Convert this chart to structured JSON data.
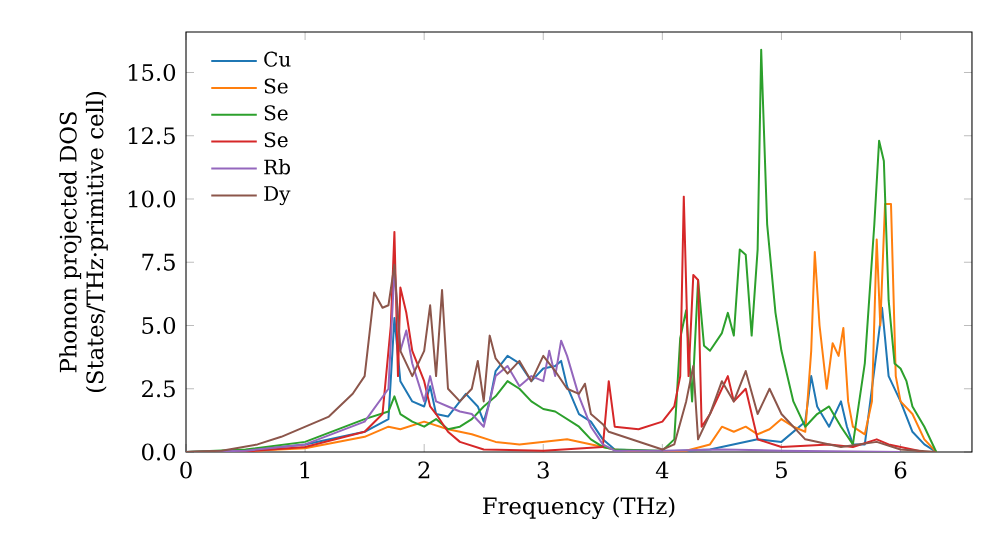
{
  "chart_data": {
    "type": "line",
    "xlabel": "Frequency (THz)",
    "ylabel": "Phonon projected DOS\n(States/THz·primitive cell)",
    "xlim": [
      0,
      6.6
    ],
    "ylim": [
      0,
      16.6
    ],
    "xticks": [
      0,
      1,
      2,
      3,
      4,
      5,
      6
    ],
    "yticks": [
      {
        "value": 0,
        "label": "0.0"
      },
      {
        "value": 2.5,
        "label": "2.5"
      },
      {
        "value": 5,
        "label": "5.0"
      },
      {
        "value": 7.5,
        "label": "7.5"
      },
      {
        "value": 10,
        "label": "10.0"
      },
      {
        "value": 12.5,
        "label": "12.5"
      },
      {
        "value": 15,
        "label": "15.0"
      }
    ],
    "legend": "top left",
    "grid": false,
    "series": [
      {
        "name": "Cu",
        "color": "#1f77b4",
        "x": [
          0,
          0.5,
          1.0,
          1.5,
          1.7,
          1.75,
          1.8,
          1.9,
          2.0,
          2.05,
          2.1,
          2.2,
          2.3,
          2.35,
          2.45,
          2.5,
          2.55,
          2.6,
          2.7,
          2.8,
          2.9,
          3.0,
          3.1,
          3.15,
          3.2,
          3.3,
          3.4,
          3.5,
          3.6,
          4.0,
          4.4,
          4.6,
          4.8,
          5.0,
          5.2,
          5.25,
          5.3,
          5.4,
          5.5,
          5.55,
          5.6,
          5.7,
          5.8,
          5.845,
          5.87,
          5.9,
          6.0,
          6.1,
          6.2,
          6.3
        ],
        "values": [
          0,
          0.05,
          0.3,
          0.8,
          1.3,
          5.3,
          2.8,
          2.0,
          1.8,
          2.6,
          1.5,
          1.4,
          2.0,
          2.3,
          1.8,
          1.2,
          2.0,
          3.2,
          3.8,
          3.5,
          2.8,
          3.3,
          3.4,
          3.6,
          2.6,
          1.5,
          1.2,
          0.5,
          0.1,
          0.02,
          0.1,
          0.3,
          0.5,
          0.4,
          1.2,
          3.0,
          1.8,
          1.0,
          2.0,
          1.0,
          0.3,
          0.3,
          4.0,
          5.7,
          4.5,
          3.0,
          2.0,
          0.8,
          0.3,
          0
        ]
      },
      {
        "name": "Se",
        "color": "#ff7f0e",
        "x": [
          0,
          0.5,
          1.0,
          1.5,
          1.7,
          1.8,
          2.0,
          2.2,
          2.4,
          2.6,
          2.8,
          3.0,
          3.2,
          3.4,
          3.6,
          3.8,
          4.2,
          4.4,
          4.5,
          4.6,
          4.7,
          4.8,
          4.9,
          5.0,
          5.1,
          5.2,
          5.25,
          5.28,
          5.32,
          5.38,
          5.43,
          5.48,
          5.52,
          5.56,
          5.6,
          5.7,
          5.76,
          5.8,
          5.83,
          5.87,
          5.92,
          5.96,
          6.0,
          6.1,
          6.2,
          6.3
        ],
        "values": [
          0,
          0.03,
          0.15,
          0.6,
          1.0,
          0.9,
          1.2,
          0.9,
          0.7,
          0.4,
          0.3,
          0.4,
          0.5,
          0.3,
          0.1,
          0,
          0.05,
          0.3,
          1.0,
          0.8,
          1.0,
          0.7,
          0.9,
          1.3,
          1.0,
          0.8,
          4.0,
          7.9,
          5.0,
          2.5,
          4.3,
          3.8,
          4.9,
          2.0,
          1.0,
          0.7,
          2.0,
          8.4,
          5.0,
          9.8,
          9.8,
          3.0,
          2.0,
          1.5,
          0.5,
          0
        ]
      },
      {
        "name": "Se",
        "color": "#2ca02c",
        "x": [
          0,
          0.5,
          1.0,
          1.5,
          1.7,
          1.75,
          1.8,
          1.9,
          2.0,
          2.1,
          2.2,
          2.3,
          2.4,
          2.5,
          2.6,
          2.7,
          2.8,
          2.9,
          3.0,
          3.1,
          3.2,
          3.3,
          3.4,
          3.5,
          3.6,
          4.0,
          4.1,
          4.15,
          4.2,
          4.25,
          4.3,
          4.35,
          4.4,
          4.5,
          4.55,
          4.6,
          4.65,
          4.7,
          4.75,
          4.8,
          4.83,
          4.88,
          4.95,
          5.0,
          5.1,
          5.2,
          5.3,
          5.4,
          5.5,
          5.6,
          5.7,
          5.78,
          5.82,
          5.86,
          5.9,
          5.95,
          6.0,
          6.05,
          6.1,
          6.2,
          6.3
        ],
        "values": [
          0,
          0.1,
          0.4,
          1.3,
          1.6,
          2.2,
          1.5,
          1.2,
          1.0,
          1.3,
          0.9,
          1.0,
          1.3,
          1.8,
          2.2,
          2.8,
          2.5,
          2.0,
          1.7,
          1.6,
          1.3,
          1.0,
          0.5,
          0.2,
          0.1,
          0.05,
          0.5,
          4.5,
          5.6,
          2.0,
          6.8,
          4.2,
          4.0,
          4.7,
          5.5,
          4.6,
          8.0,
          7.8,
          4.6,
          8.0,
          15.9,
          9.0,
          5.5,
          4.0,
          2.0,
          1.0,
          1.5,
          1.8,
          1.0,
          0.3,
          3.5,
          9.0,
          12.3,
          11.5,
          6.0,
          3.5,
          3.3,
          2.8,
          1.8,
          1.0,
          0
        ]
      },
      {
        "name": "Se",
        "color": "#d62728",
        "x": [
          0,
          0.5,
          1.0,
          1.5,
          1.65,
          1.72,
          1.75,
          1.78,
          1.8,
          1.85,
          1.9,
          2.0,
          2.05,
          2.1,
          2.2,
          2.3,
          2.5,
          3.0,
          3.5,
          3.55,
          3.6,
          3.8,
          4.0,
          4.1,
          4.15,
          4.18,
          4.22,
          4.26,
          4.3,
          4.33,
          4.4,
          4.5,
          4.55,
          4.6,
          4.7,
          4.8,
          5.0,
          5.4,
          5.6,
          5.8,
          5.9,
          6.2
        ],
        "values": [
          0,
          0.02,
          0.2,
          0.8,
          1.5,
          5.0,
          8.7,
          3.0,
          6.5,
          5.5,
          4.0,
          2.8,
          1.8,
          1.5,
          0.8,
          0.4,
          0.1,
          0.05,
          0.2,
          2.8,
          1.0,
          0.9,
          1.2,
          1.8,
          3.0,
          10.1,
          3.0,
          7.0,
          6.8,
          1.0,
          1.5,
          2.5,
          3.0,
          2.0,
          2.5,
          0.5,
          0.2,
          0.3,
          0.2,
          0.5,
          0.3,
          0
        ]
      },
      {
        "name": "Rb",
        "color": "#9467bd",
        "x": [
          0,
          0.5,
          1.0,
          1.5,
          1.7,
          1.75,
          1.8,
          1.85,
          1.9,
          2.0,
          2.05,
          2.1,
          2.2,
          2.3,
          2.4,
          2.5,
          2.6,
          2.7,
          2.8,
          2.9,
          3.0,
          3.05,
          3.1,
          3.15,
          3.2,
          3.3,
          3.4,
          3.5,
          3.6,
          4.0,
          4.5,
          5.0,
          6.0
        ],
        "values": [
          0,
          0.05,
          0.3,
          1.2,
          2.5,
          7.2,
          4.0,
          4.8,
          3.5,
          2.0,
          3.0,
          2.0,
          1.8,
          1.6,
          1.5,
          1.0,
          3.0,
          3.4,
          2.6,
          3.0,
          2.8,
          4.0,
          3.0,
          4.4,
          3.8,
          2.2,
          1.0,
          0.3,
          0.05,
          0.05,
          0.1,
          0.05,
          0
        ]
      },
      {
        "name": "Dy",
        "color": "#8c564b",
        "x": [
          0,
          0.3,
          0.6,
          0.8,
          1.0,
          1.2,
          1.4,
          1.5,
          1.58,
          1.65,
          1.7,
          1.75,
          1.8,
          1.9,
          2.0,
          2.05,
          2.1,
          2.15,
          2.2,
          2.3,
          2.4,
          2.45,
          2.5,
          2.55,
          2.6,
          2.7,
          2.8,
          2.9,
          3.0,
          3.1,
          3.2,
          3.3,
          3.35,
          3.4,
          3.5,
          3.55,
          4.0,
          4.1,
          4.2,
          4.26,
          4.3,
          4.4,
          4.5,
          4.6,
          4.7,
          4.8,
          4.9,
          5.0,
          5.1,
          5.2,
          5.5,
          5.8,
          6.0,
          6.3
        ],
        "values": [
          0,
          0.05,
          0.3,
          0.6,
          1.0,
          1.4,
          2.3,
          3.0,
          6.3,
          5.7,
          5.8,
          7.4,
          4.0,
          3.0,
          4.0,
          5.8,
          3.0,
          6.4,
          2.5,
          2.0,
          2.5,
          3.6,
          2.0,
          4.6,
          3.7,
          3.1,
          3.6,
          2.8,
          3.8,
          3.2,
          2.5,
          2.3,
          2.7,
          1.5,
          1.1,
          0.8,
          0.1,
          0.3,
          2.0,
          3.4,
          0.5,
          1.5,
          2.8,
          2.0,
          3.2,
          1.5,
          2.5,
          1.5,
          1.0,
          0.5,
          0.2,
          0.4,
          0.1,
          0
        ]
      }
    ]
  }
}
